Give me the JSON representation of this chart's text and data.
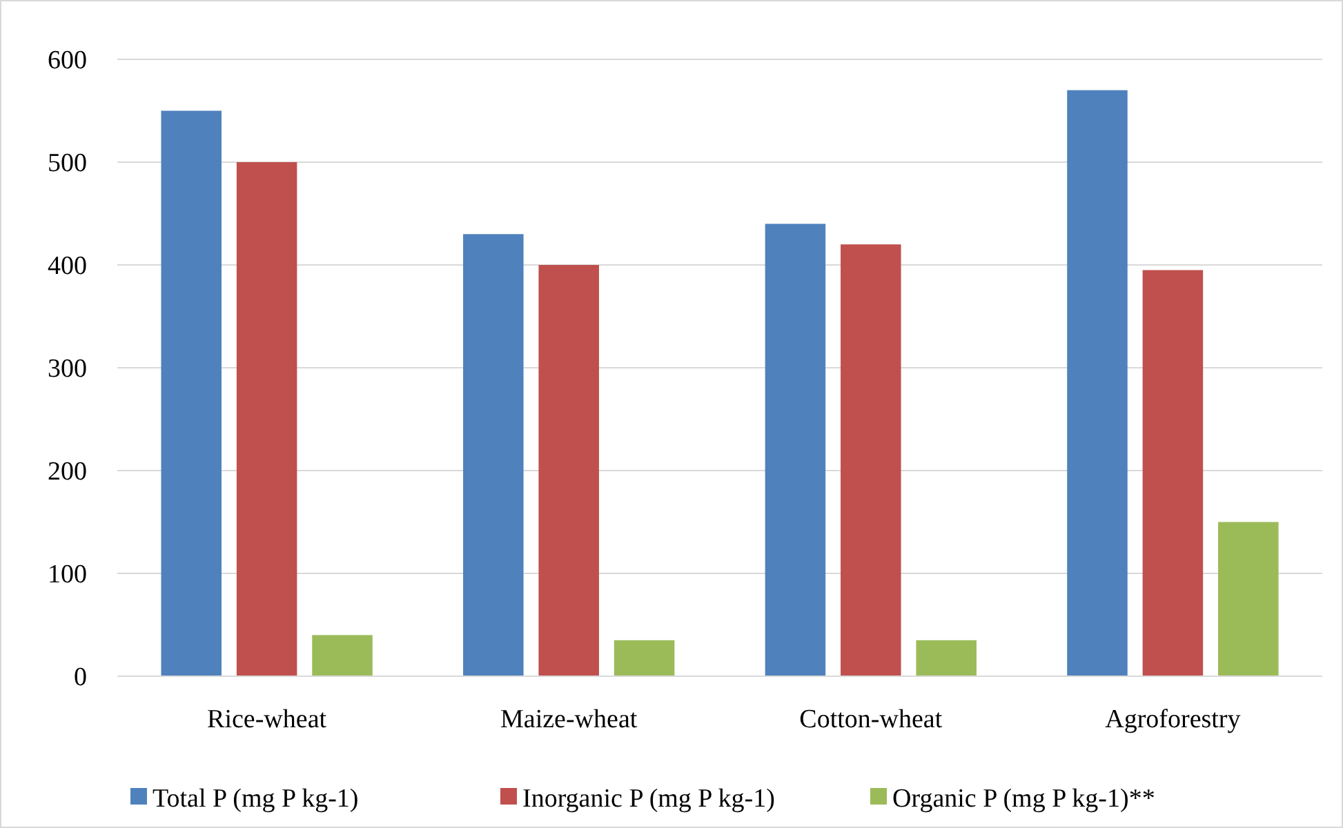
{
  "chart_data": {
    "type": "bar",
    "categories": [
      "Rice-wheat",
      "Maize-wheat",
      "Cotton-wheat",
      "Agroforestry"
    ],
    "series": [
      {
        "name": "Total P (mg P kg-1)",
        "color": "#4f81bd",
        "values": [
          550,
          430,
          440,
          570
        ]
      },
      {
        "name": "Inorganic P (mg P kg-1)",
        "color": "#c0504d",
        "values": [
          500,
          400,
          420,
          395
        ]
      },
      {
        "name": "Organic P (mg P kg-1)**",
        "color": "#9bbb59",
        "values": [
          40,
          35,
          35,
          150
        ]
      }
    ],
    "ylim": [
      0,
      600
    ],
    "yticks": [
      0,
      100,
      200,
      300,
      400,
      500,
      600
    ],
    "grid": "y",
    "legend": "bottom"
  }
}
